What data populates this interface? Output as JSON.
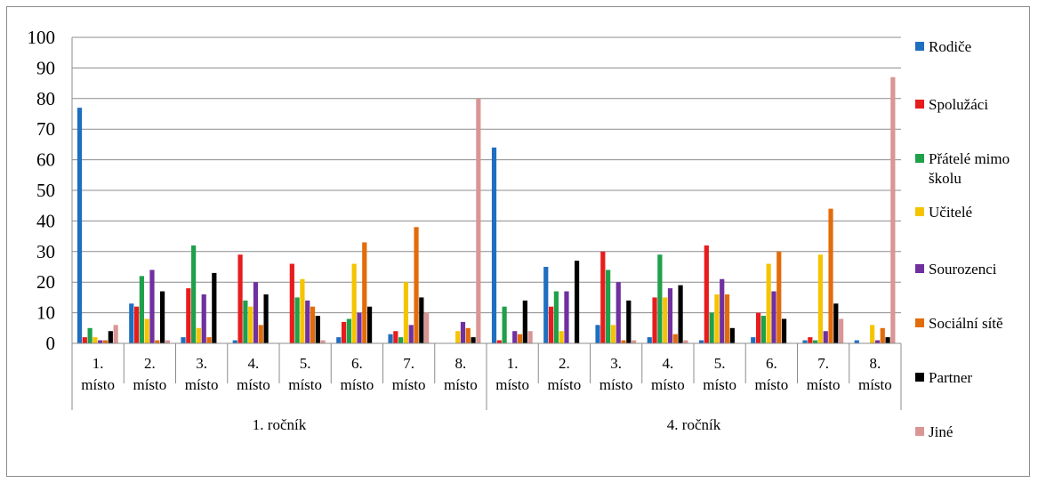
{
  "chart_data": {
    "type": "bar",
    "ylim": [
      0,
      100
    ],
    "yticks": [
      0,
      10,
      20,
      30,
      40,
      50,
      60,
      70,
      80,
      90,
      100
    ],
    "grid": true,
    "legend_position": "right",
    "groups": [
      {
        "label": "1. ročník",
        "categories": [
          [
            "1.",
            "místo"
          ],
          [
            "2.",
            "místo"
          ],
          [
            "3.",
            "místo"
          ],
          [
            "4.",
            "místo"
          ],
          [
            "5.",
            "místo"
          ],
          [
            "6.",
            "místo"
          ],
          [
            "7.",
            "místo"
          ],
          [
            "8.",
            "místo"
          ]
        ]
      },
      {
        "label": "4. ročník",
        "categories": [
          [
            "1.",
            "místo"
          ],
          [
            "2.",
            "místo"
          ],
          [
            "3.",
            "místo"
          ],
          [
            "4.",
            "místo"
          ],
          [
            "5.",
            "místo"
          ],
          [
            "6.",
            "místo"
          ],
          [
            "7.",
            "místo"
          ],
          [
            "8.",
            "místo"
          ]
        ]
      }
    ],
    "series": [
      {
        "name": "Rodiče",
        "color": "#1f6fc0",
        "values": [
          77,
          13,
          2,
          1,
          0,
          2,
          3,
          0,
          64,
          25,
          6,
          2,
          1,
          2,
          1,
          1
        ]
      },
      {
        "name": "Spolužáci",
        "color": "#e81c1c",
        "values": [
          2,
          12,
          18,
          29,
          26,
          7,
          4,
          0,
          1,
          12,
          30,
          15,
          32,
          10,
          2,
          0
        ]
      },
      {
        "name": "Přátelé mimo školu",
        "color": "#1fa04a",
        "values": [
          5,
          22,
          32,
          14,
          15,
          8,
          2,
          0,
          12,
          17,
          24,
          29,
          10,
          9,
          1,
          0
        ]
      },
      {
        "name": "Učitelé",
        "color": "#f5c400",
        "values": [
          2,
          8,
          5,
          12,
          21,
          26,
          20,
          4,
          0,
          4,
          6,
          15,
          16,
          26,
          29,
          6
        ]
      },
      {
        "name": "Sourozenci",
        "color": "#7030a0",
        "values": [
          1,
          24,
          16,
          20,
          14,
          10,
          6,
          7,
          4,
          17,
          20,
          18,
          21,
          17,
          4,
          1
        ]
      },
      {
        "name": "Sociální sítě",
        "color": "#e36c0a",
        "values": [
          1,
          1,
          2,
          6,
          12,
          33,
          38,
          5,
          3,
          0,
          1,
          3,
          16,
          30,
          44,
          5
        ]
      },
      {
        "name": "Partner",
        "color": "#000000",
        "values": [
          4,
          17,
          23,
          16,
          9,
          12,
          15,
          2,
          14,
          27,
          14,
          19,
          5,
          8,
          13,
          2
        ]
      },
      {
        "name": "Jiné",
        "color": "#d99694",
        "values": [
          6,
          1,
          0,
          0,
          1,
          0,
          10,
          80,
          4,
          0,
          1,
          1,
          0,
          0,
          8,
          87
        ]
      }
    ],
    "legend": [
      {
        "lines": [
          "Rodiče"
        ]
      },
      {
        "lines": [
          "Spolužáci"
        ]
      },
      {
        "lines": [
          "Přátelé mimo",
          "školu"
        ]
      },
      {
        "lines": [
          "Učitelé"
        ]
      },
      {
        "lines": [
          "Sourozenci"
        ]
      },
      {
        "lines": [
          "Sociální sítě"
        ]
      },
      {
        "lines": [
          "Partner"
        ]
      },
      {
        "lines": [
          "Jiné"
        ]
      }
    ]
  }
}
